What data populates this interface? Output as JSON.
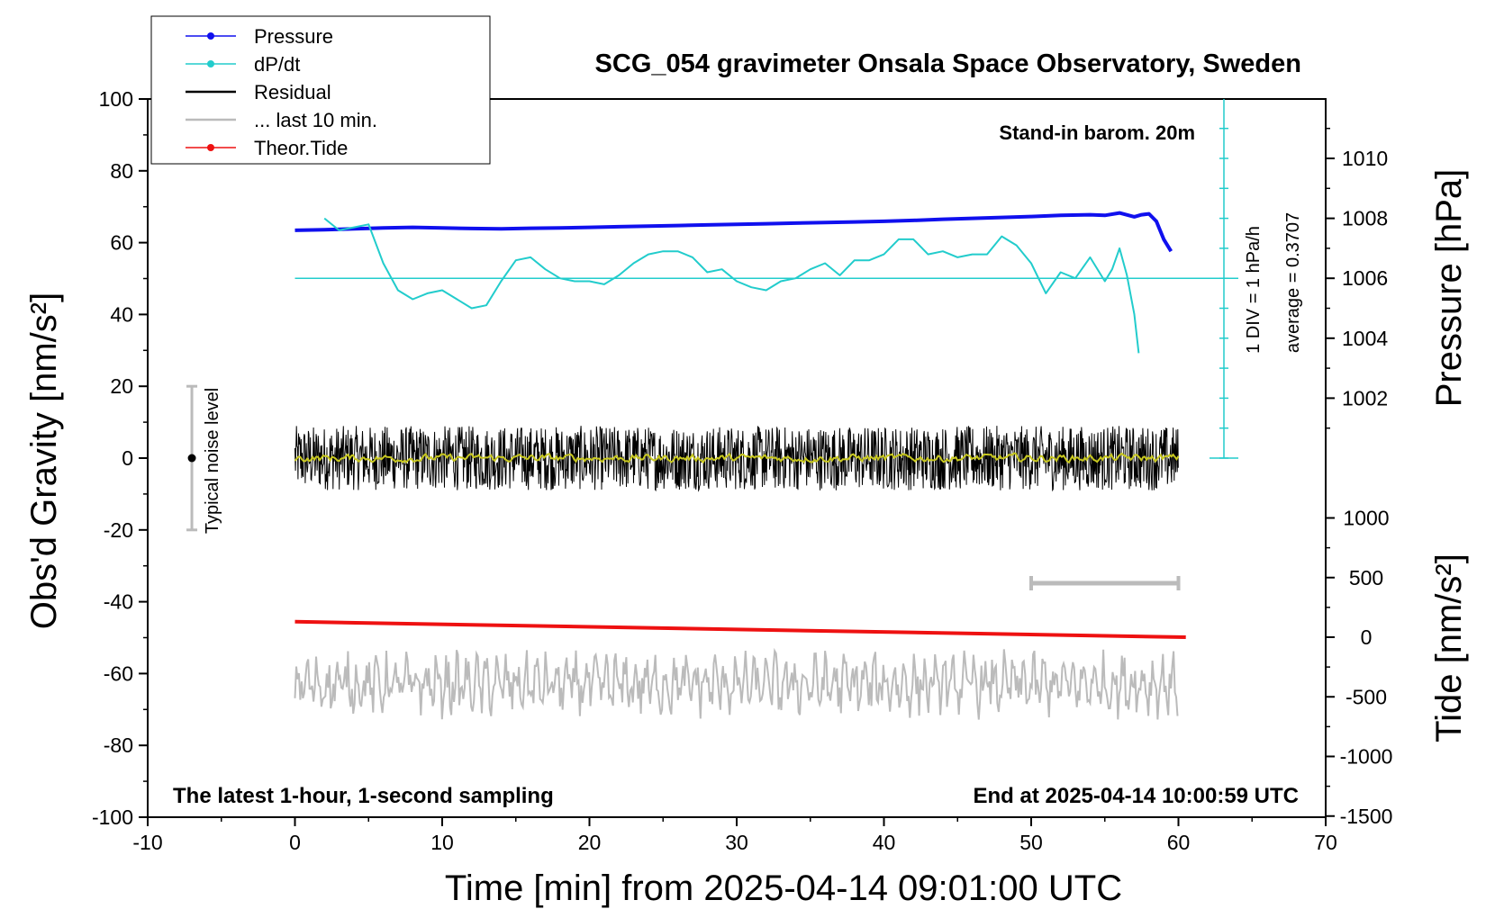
{
  "chart_data": {
    "type": "line",
    "title": "SCG_054 gravimeter Onsala Space Observatory, Sweden",
    "xlabel": "Time [min] from 2025-04-14 09:01:00 UTC",
    "ylabel": "Obs'd Gravity [nm/s²]",
    "y2label": "Pressure [hPa]",
    "y3label": "Tide [nm/s²]",
    "xlim": [
      -10,
      70
    ],
    "ylim": [
      -100,
      100
    ],
    "pressure_lim": [
      1000,
      1012
    ],
    "tide_lim": [
      -1500,
      1500
    ],
    "x_ticks": [
      "-10",
      "0",
      "10",
      "20",
      "30",
      "40",
      "50",
      "60",
      "70"
    ],
    "x_tick_values": [
      -10,
      0,
      10,
      20,
      30,
      40,
      50,
      60,
      70
    ],
    "y_ticks": [
      "100",
      "80",
      "60",
      "40",
      "20",
      "0",
      "-20",
      "-40",
      "-60",
      "-80",
      "-100"
    ],
    "y_tick_values": [
      100,
      80,
      60,
      40,
      20,
      0,
      -20,
      -40,
      -60,
      -80,
      -100
    ],
    "pressure_ticks": [
      "1010",
      "1008",
      "1006",
      "1004",
      "1002"
    ],
    "pressure_tick_values": [
      1010,
      1008,
      1006,
      1004,
      1002
    ],
    "tide_ticks": [
      "1000",
      "500",
      "0",
      "-500",
      "-1000",
      "-1500"
    ],
    "tide_tick_values": [
      1000,
      500,
      0,
      -500,
      -1000,
      -1500
    ],
    "legend": [
      {
        "label": "Pressure",
        "color": "#1010ee",
        "marker": "dot"
      },
      {
        "label": "dP/dt",
        "color": "#22cccc",
        "marker": "dot"
      },
      {
        "label": "Residual",
        "color": "#000000",
        "marker": "none"
      },
      {
        "label": "... last 10 min.",
        "color": "#bbbbbb",
        "marker": "none"
      },
      {
        "label": "Theor.Tide",
        "color": "#ee1111",
        "marker": "dot"
      }
    ],
    "annotations": {
      "barometer": "Stand-in barom. 20m",
      "scale_div": "1 DIV = 1 hPa/h",
      "average": "average = 0.3707",
      "noise": "Typical noise level",
      "latest": "The latest 1-hour, 1-second sampling",
      "end": "End at 2025-04-14 10:00:59 UTC"
    },
    "noise_bar": {
      "x": -7,
      "low": -20,
      "high": 20,
      "center": 0
    },
    "last10_bracket": {
      "x_start": 50,
      "x_end": 60
    },
    "dpdt_zero_level_pressure": 1006,
    "series": [
      {
        "name": "Pressure",
        "axis": "pressure",
        "color": "#1010ee",
        "x": [
          0,
          2,
          4,
          6,
          8,
          10,
          12,
          14,
          16,
          18,
          20,
          22,
          24,
          26,
          28,
          30,
          32,
          34,
          36,
          38,
          40,
          42,
          44,
          46,
          48,
          50,
          52,
          54,
          55,
          56,
          57,
          57.5,
          58,
          58.5,
          59,
          59.5
        ],
        "values": [
          1007.6,
          1007.62,
          1007.65,
          1007.68,
          1007.7,
          1007.68,
          1007.66,
          1007.65,
          1007.67,
          1007.68,
          1007.7,
          1007.72,
          1007.74,
          1007.76,
          1007.78,
          1007.8,
          1007.82,
          1007.84,
          1007.86,
          1007.88,
          1007.9,
          1007.93,
          1007.97,
          1008.0,
          1008.03,
          1008.06,
          1008.1,
          1008.12,
          1008.1,
          1008.18,
          1008.05,
          1008.12,
          1008.15,
          1007.9,
          1007.3,
          1006.9
        ]
      },
      {
        "name": "dP/dt",
        "axis": "pressure",
        "color": "#22cccc",
        "x": [
          2,
          3,
          4,
          5,
          6,
          7,
          8,
          9,
          10,
          11,
          12,
          13,
          14,
          15,
          16,
          17,
          18,
          19,
          20,
          21,
          22,
          23,
          24,
          25,
          26,
          27,
          28,
          29,
          30,
          31,
          32,
          33,
          34,
          35,
          36,
          37,
          38,
          39,
          40,
          41,
          42,
          43,
          44,
          45,
          46,
          47,
          48,
          49,
          50,
          51,
          52,
          53,
          54,
          55,
          55.5,
          56,
          56.5,
          57,
          57.3
        ],
        "values": [
          1008.0,
          1007.6,
          1007.7,
          1007.8,
          1006.5,
          1005.6,
          1005.3,
          1005.5,
          1005.6,
          1005.3,
          1005.0,
          1005.1,
          1005.9,
          1006.6,
          1006.7,
          1006.3,
          1006.0,
          1005.9,
          1005.9,
          1005.8,
          1006.1,
          1006.5,
          1006.8,
          1006.9,
          1006.9,
          1006.7,
          1006.2,
          1006.3,
          1005.9,
          1005.7,
          1005.6,
          1005.9,
          1006.0,
          1006.3,
          1006.5,
          1006.1,
          1006.6,
          1006.6,
          1006.8,
          1007.3,
          1007.3,
          1006.8,
          1006.9,
          1006.7,
          1006.8,
          1006.8,
          1007.4,
          1007.1,
          1006.5,
          1005.5,
          1006.2,
          1006.0,
          1006.7,
          1005.9,
          1006.3,
          1007.0,
          1006.1,
          1004.8,
          1003.5
        ]
      },
      {
        "name": "Residual",
        "axis": "gravity",
        "color": "#000000",
        "x_range": [
          0,
          60
        ],
        "mean": 0,
        "amplitude": 9
      },
      {
        "name": "Residual (smoothed)",
        "axis": "gravity",
        "color": "#c8c820",
        "x_range": [
          0,
          60
        ],
        "mean": 0,
        "amplitude": 2
      },
      {
        "name": "... last 10 min.",
        "axis": "gravity",
        "color": "#bbbbbb",
        "x_range": [
          0,
          60
        ],
        "mean": -63,
        "amplitude": 9
      },
      {
        "name": "Theor.Tide",
        "axis": "tide",
        "color": "#ee1111",
        "x": [
          0,
          60.5
        ],
        "values": [
          130,
          0
        ]
      }
    ]
  }
}
